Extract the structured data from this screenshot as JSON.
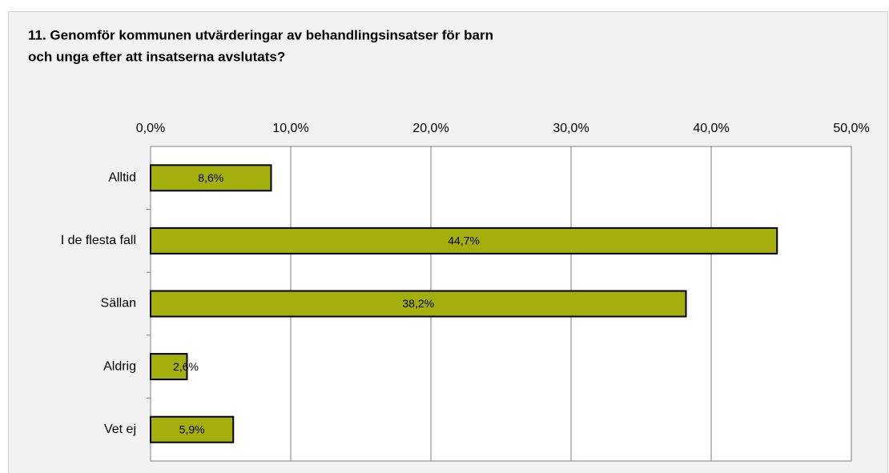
{
  "chart_data": {
    "type": "bar",
    "orientation": "horizontal",
    "title": [
      "11. Genomför kommunen utvärderingar av behandlingsinsatser för barn",
      "och unga efter att insatserna avslutats?"
    ],
    "categories": [
      "Alltid",
      "I de flesta fall",
      "Sällan",
      "Aldrig",
      "Vet ej"
    ],
    "values": [
      8.6,
      44.7,
      38.2,
      2.6,
      5.9
    ],
    "value_labels": [
      "8,6%",
      "44,7%",
      "38,2%",
      "2,6%",
      "5,9%"
    ],
    "color": "#a4ae0c",
    "xlim": [
      0,
      50
    ],
    "xticks": [
      {
        "value": 0,
        "label": "0,0%"
      },
      {
        "value": 10,
        "label": "10,0%"
      },
      {
        "value": 20,
        "label": "20,0%"
      },
      {
        "value": 30,
        "label": "30,0%"
      },
      {
        "value": 40,
        "label": "40,0%"
      },
      {
        "value": 50,
        "label": "50,0%"
      }
    ],
    "grid": true
  }
}
